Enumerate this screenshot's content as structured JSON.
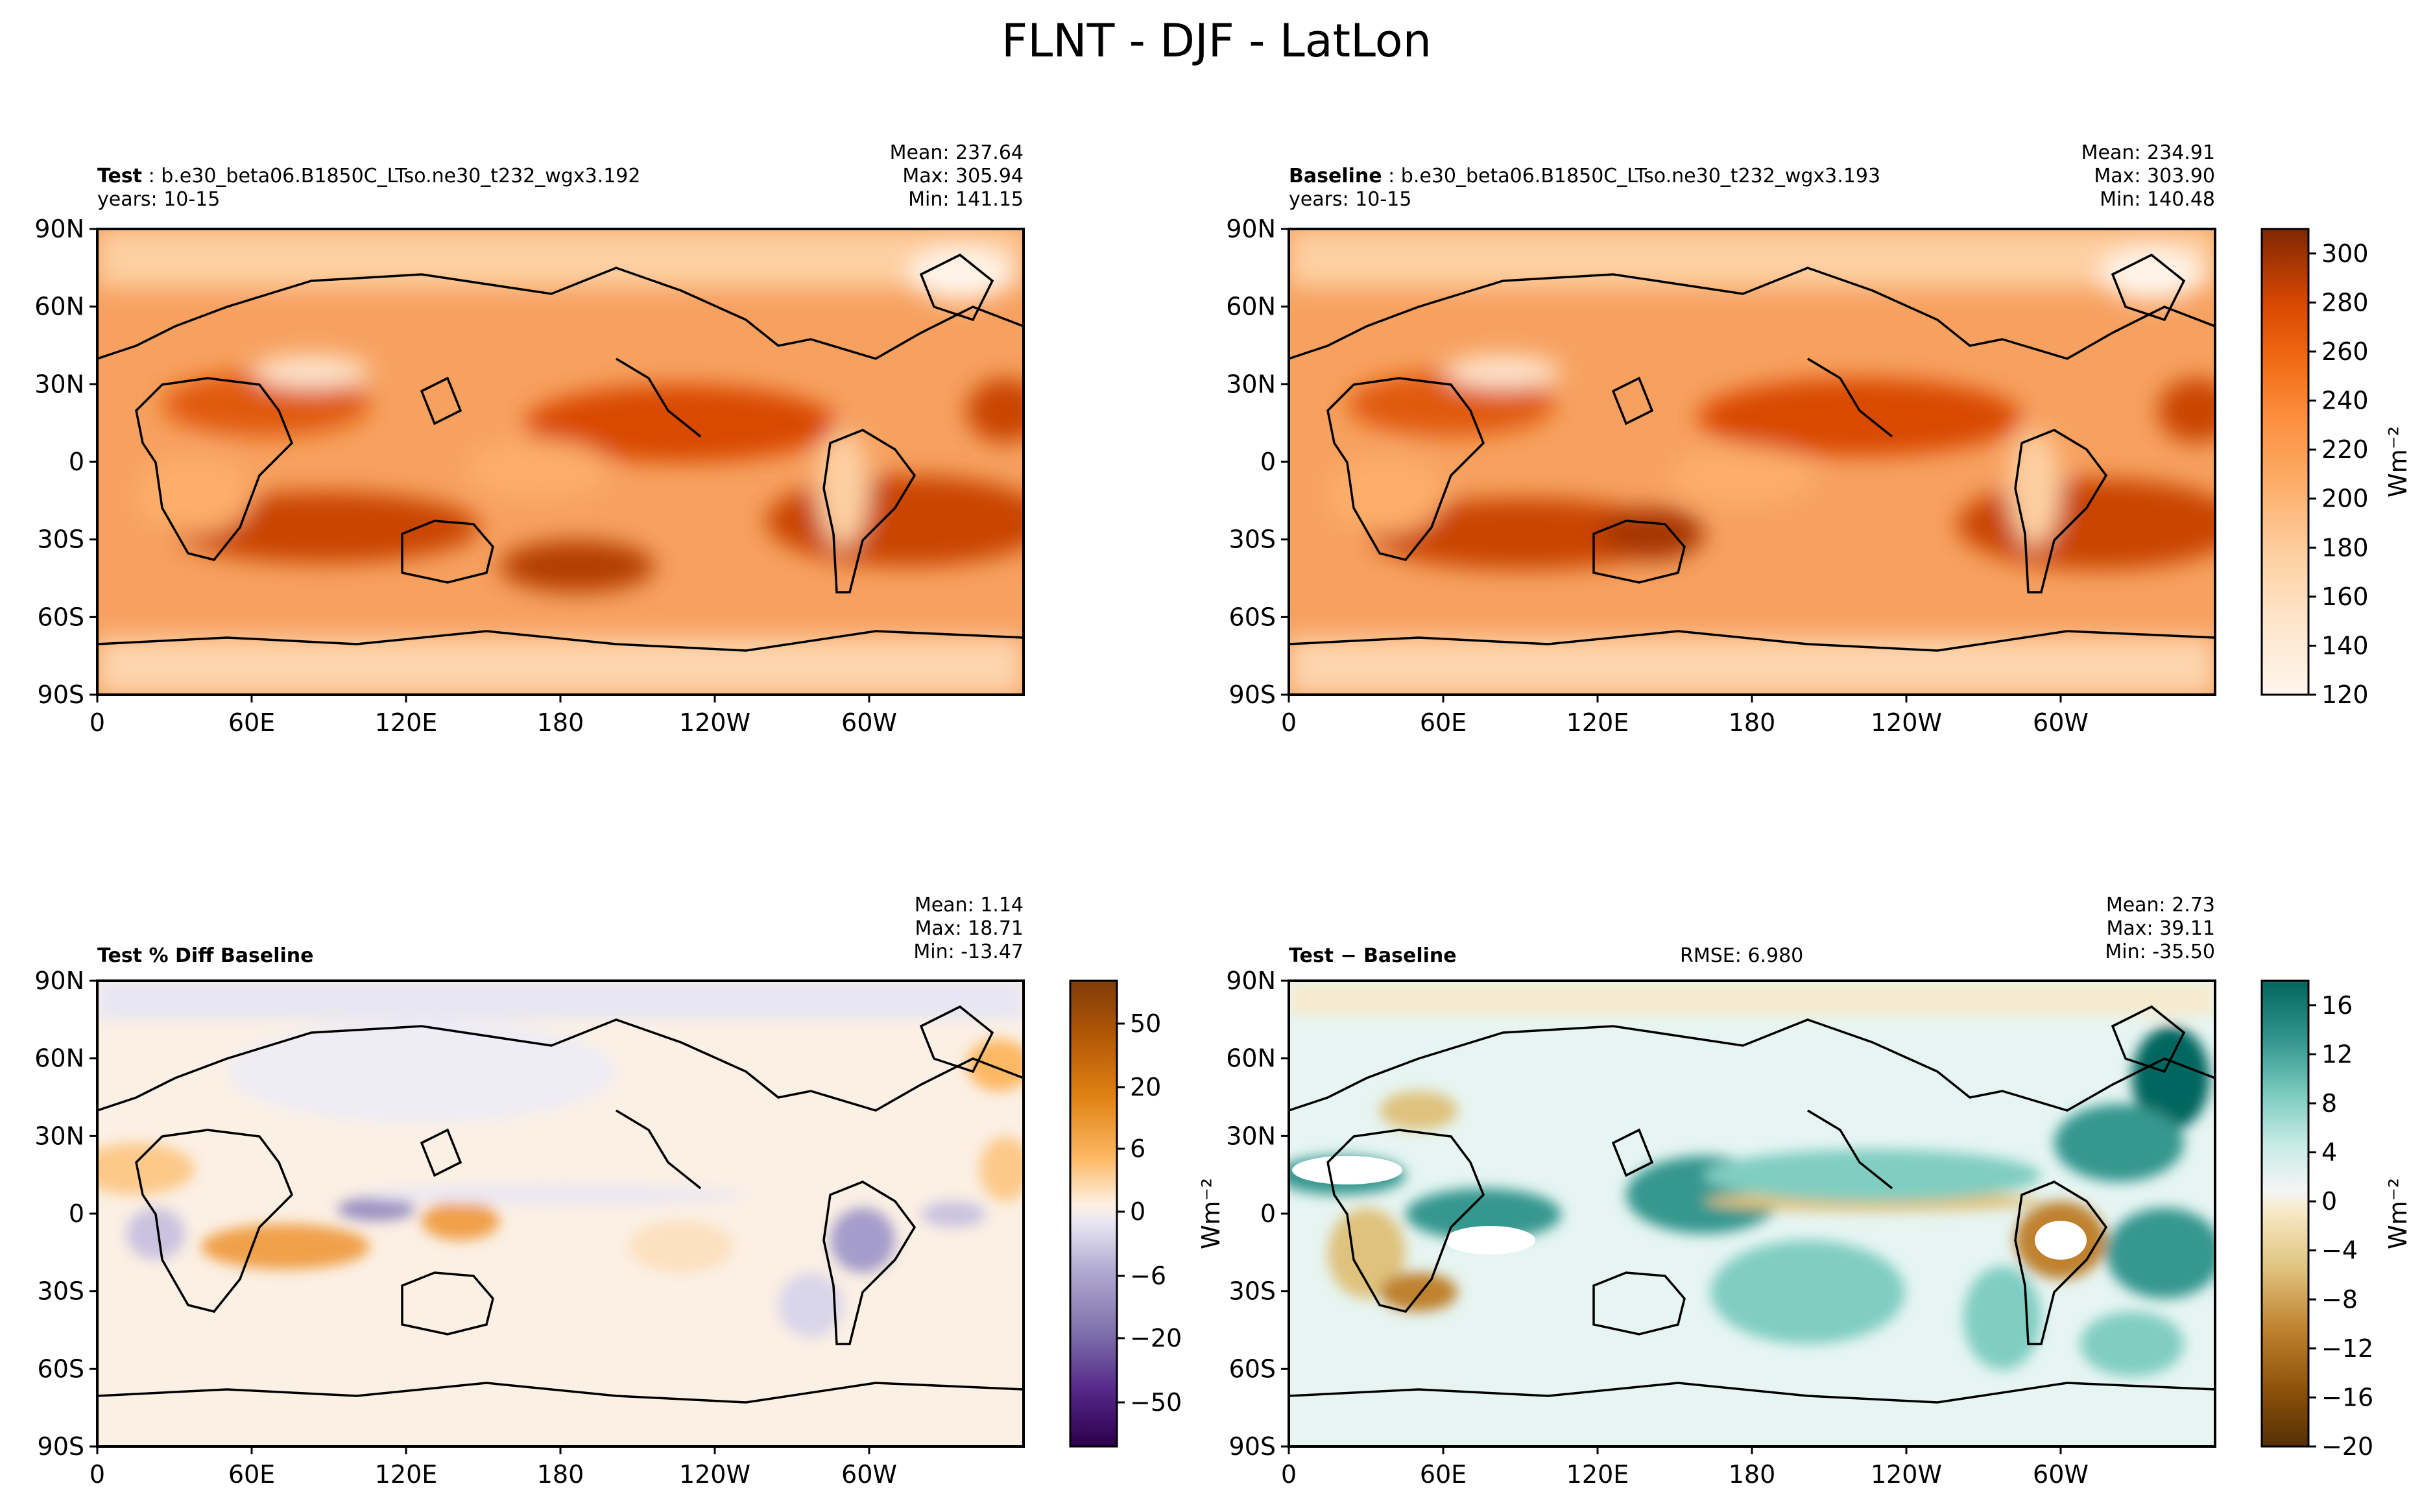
{
  "figure": {
    "title": "FLNT - DJF - LatLon"
  },
  "panels": [
    {
      "id": "test",
      "label": "Test",
      "case": "b.e30_beta06.B1850C_LTso.ne30_t232_wgx3.192",
      "years": "years: 10-15",
      "stats": {
        "mean": "Mean: 237.64",
        "max": "Max: 305.94",
        "min": "Min: 141.15"
      }
    },
    {
      "id": "baseline",
      "label": "Baseline",
      "case": "b.e30_beta06.B1850C_LTso.ne30_t232_wgx3.193",
      "years": "years: 10-15",
      "stats": {
        "mean": "Mean: 234.91",
        "max": "Max: 303.90",
        "min": "Min: 140.48"
      }
    },
    {
      "id": "pctdiff",
      "label": "Test % Diff Baseline",
      "stats": {
        "mean": "Mean:  1.14",
        "max": "Max: 18.71",
        "min": "Min: -13.47"
      }
    },
    {
      "id": "diff",
      "label": "Test − Baseline",
      "rmse": "RMSE: 6.980",
      "stats": {
        "mean": "Mean:  2.73",
        "max": "Max: 39.11",
        "min": "Min: -35.50"
      }
    }
  ],
  "colorbars": {
    "flnt": {
      "ticks": [
        "120",
        "140",
        "160",
        "180",
        "200",
        "220",
        "240",
        "260",
        "280",
        "300"
      ],
      "label": "Wm⁻²",
      "range": [
        120,
        310
      ]
    },
    "pct": {
      "ticks": [
        "−50",
        "−20",
        "−6",
        "0",
        "6",
        "20",
        "50"
      ],
      "label": ""
    },
    "diff": {
      "ticks": [
        "−20",
        "−16",
        "−12",
        "−8",
        "−4",
        "0",
        "4",
        "8",
        "12",
        "16"
      ],
      "label": "Wm⁻²",
      "range": [
        -20,
        18
      ]
    }
  },
  "axes": {
    "lat_ticks": [
      "90N",
      "60N",
      "30N",
      "0",
      "30S",
      "60S",
      "90S"
    ],
    "lon_ticks": [
      "0",
      "60E",
      "120E",
      "180",
      "120W",
      "60W"
    ]
  },
  "ylabel_pct_side": "Wm⁻²",
  "chart_data": [
    {
      "type": "heatmap",
      "projection": "latlon",
      "title": "Test",
      "variable": "FLNT",
      "season": "DJF",
      "units": "Wm⁻²",
      "colormap": "Oranges",
      "clim": [
        120,
        310
      ],
      "mean": 237.64,
      "max": 305.94,
      "min": 141.15,
      "x": [
        0,
        60,
        120,
        180,
        240,
        300
      ],
      "xlabels": [
        "0",
        "60E",
        "120E",
        "180",
        "120W",
        "60W"
      ],
      "y": [
        90,
        60,
        30,
        0,
        -30,
        -60,
        -90
      ],
      "ylabels": [
        "90N",
        "60N",
        "30N",
        "0",
        "30S",
        "60S",
        "90S"
      ]
    },
    {
      "type": "heatmap",
      "projection": "latlon",
      "title": "Baseline",
      "variable": "FLNT",
      "season": "DJF",
      "units": "Wm⁻²",
      "colormap": "Oranges",
      "clim": [
        120,
        310
      ],
      "mean": 234.91,
      "max": 303.9,
      "min": 140.48
    },
    {
      "type": "heatmap",
      "projection": "latlon",
      "title": "Test % Diff Baseline",
      "colormap": "PuOr_r",
      "levels": [
        -50,
        -20,
        -6,
        0,
        6,
        20,
        50
      ],
      "mean": 1.14,
      "max": 18.71,
      "min": -13.47
    },
    {
      "type": "heatmap",
      "projection": "latlon",
      "title": "Test − Baseline",
      "colormap": "BrBG",
      "units": "Wm⁻²",
      "clim": [
        -20,
        18
      ],
      "rmse": 6.98,
      "mean": 2.73,
      "max": 39.11,
      "min": -35.5
    }
  ]
}
